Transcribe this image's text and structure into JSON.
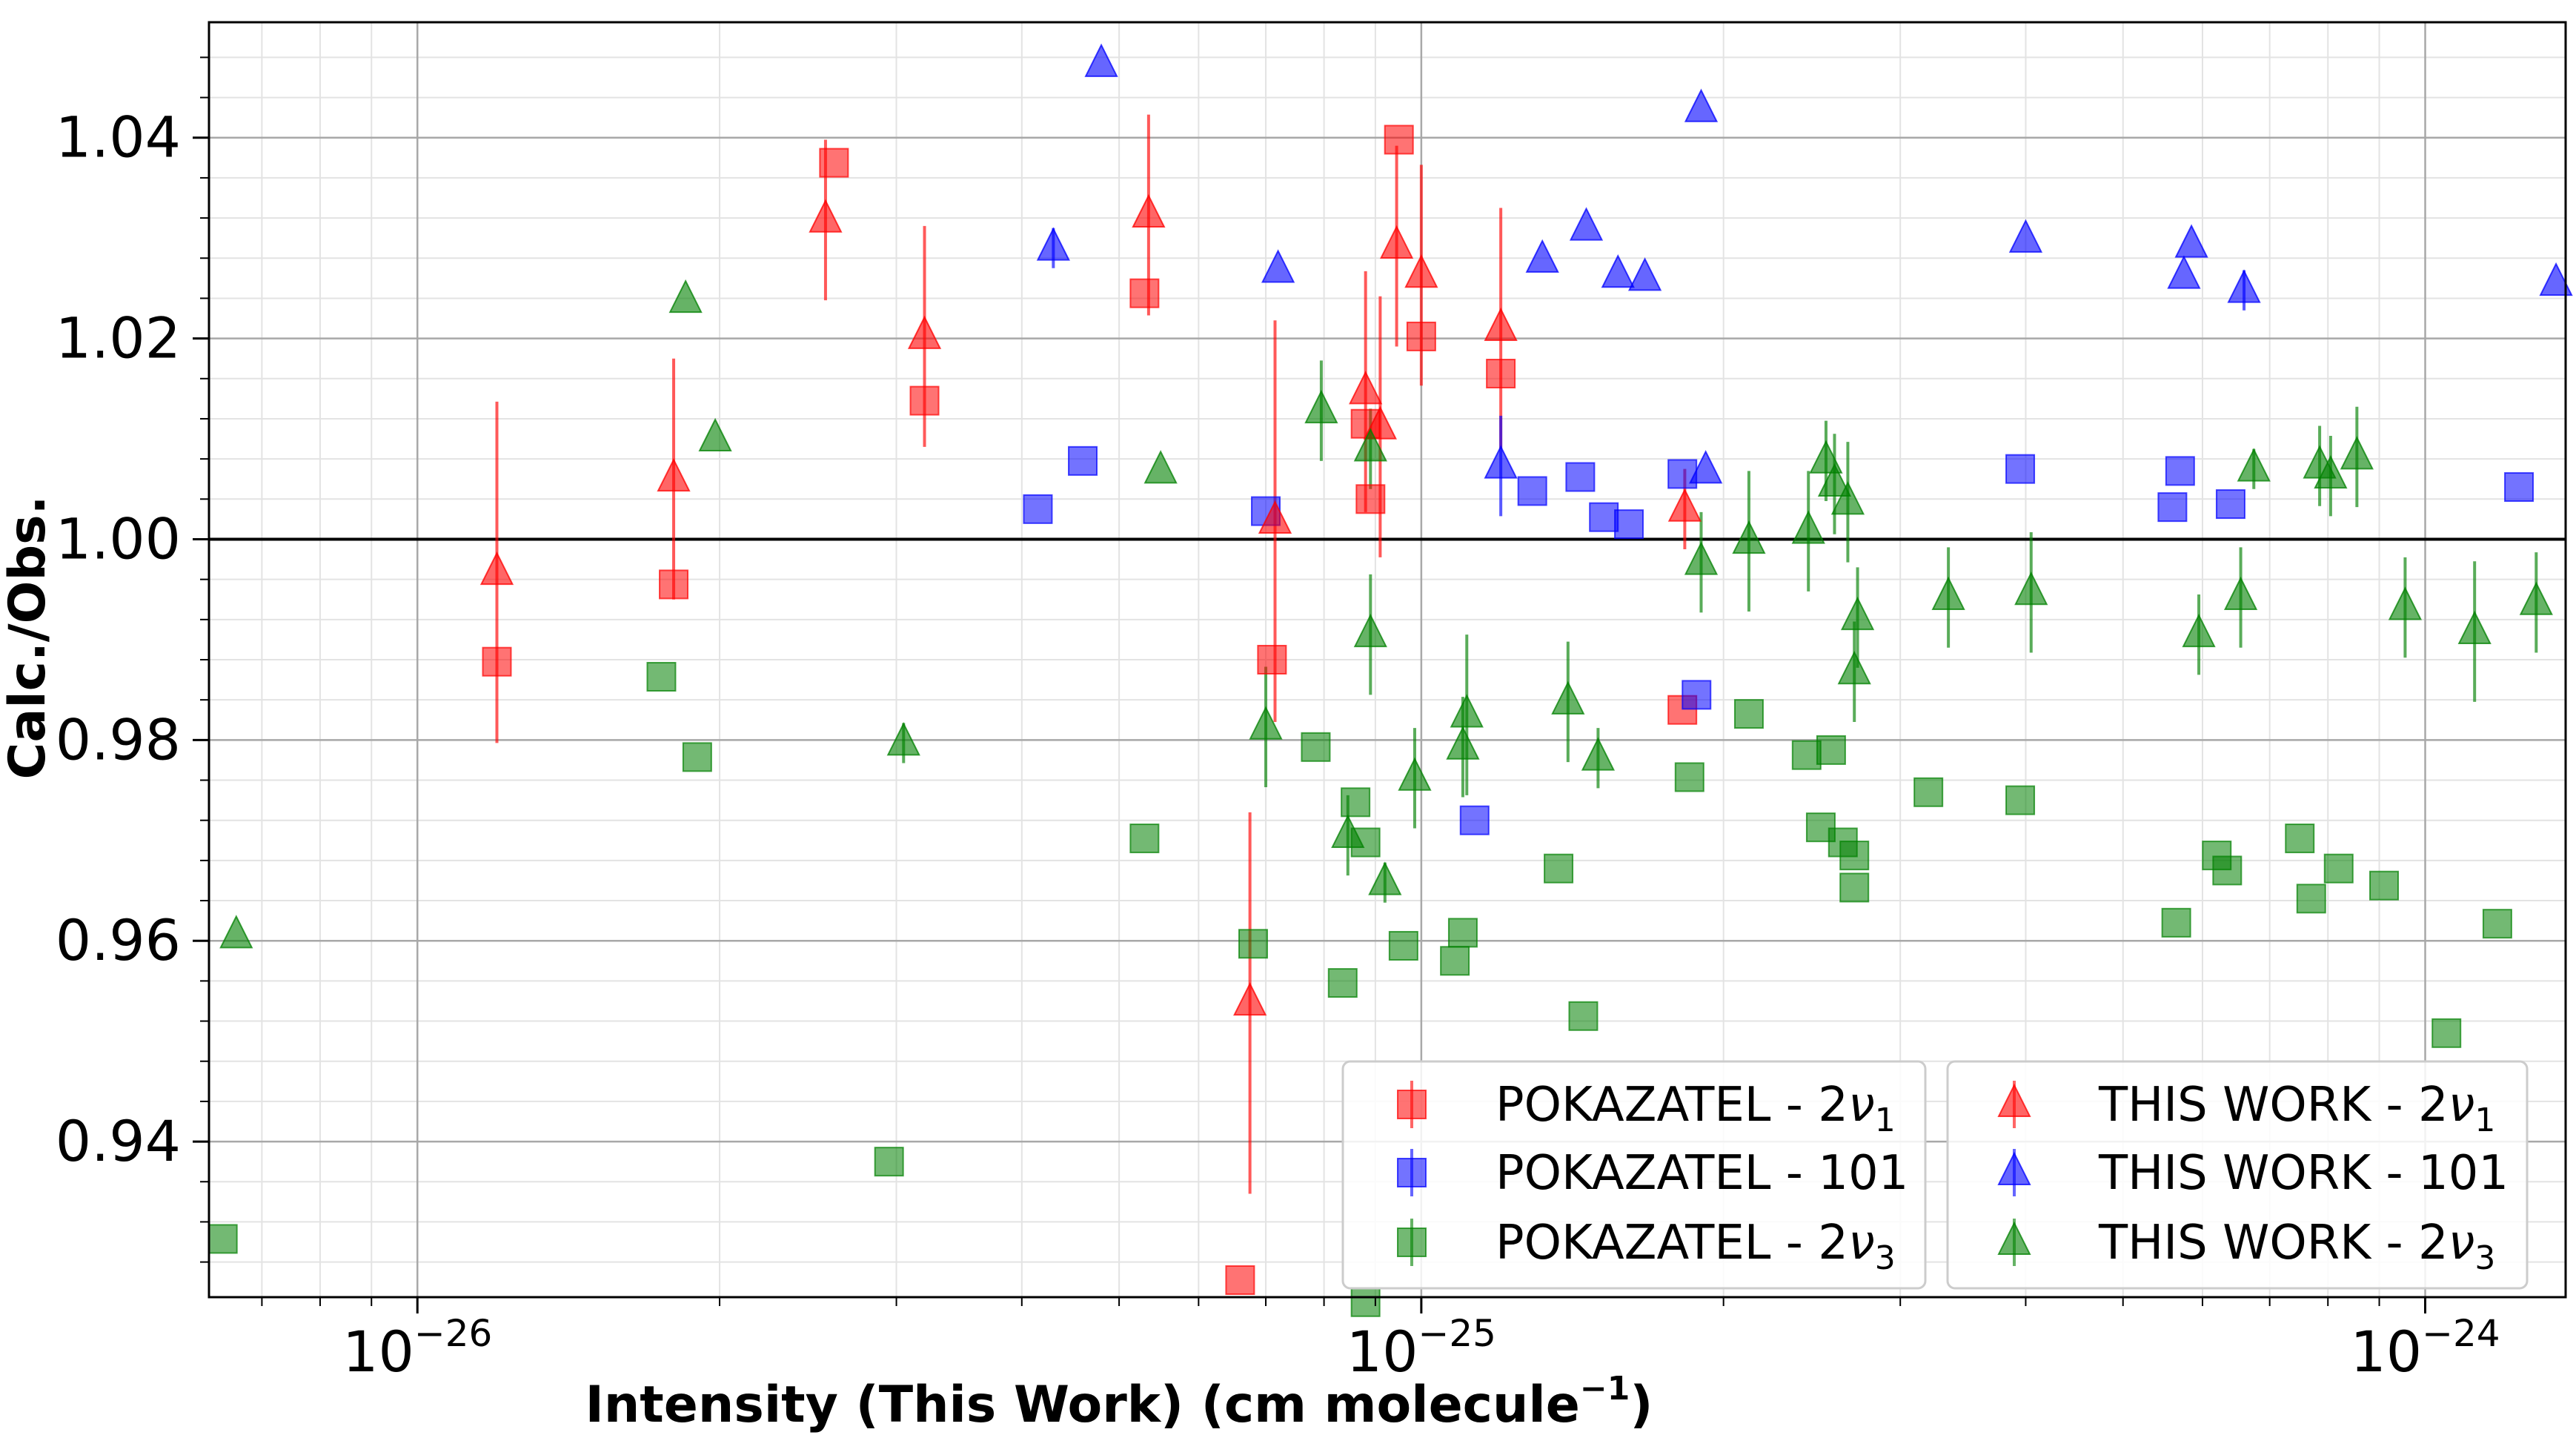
{
  "chart_data": {
    "type": "scatter",
    "title": "",
    "xlabel": "Intensity (This Work) (cm molecule",
    "xlabel_sup": "−1",
    "xlabel_close": ")",
    "ylabel": "Calc./Obs.",
    "xscale": "log",
    "xlim": [
      6.2e-27,
      1.38e-24
    ],
    "ylim": [
      0.9245,
      1.0515
    ],
    "x_ticks": [
      {
        "value": 1e-26,
        "base": "10",
        "exp": "−26"
      },
      {
        "value": 1e-25,
        "base": "10",
        "exp": "−25"
      },
      {
        "value": 1e-24,
        "base": "10",
        "exp": "−24"
      }
    ],
    "y_ticks": [
      {
        "value": 0.94,
        "label": "0.94"
      },
      {
        "value": 0.96,
        "label": "0.96"
      },
      {
        "value": 0.98,
        "label": "0.98"
      },
      {
        "value": 1.0,
        "label": "1.00"
      },
      {
        "value": 1.02,
        "label": "1.02"
      },
      {
        "value": 1.04,
        "label": "1.04"
      }
    ],
    "reference_line": 1.0,
    "grid": true,
    "legend_position": "lower-right",
    "series": [
      {
        "name": "POKAZATEL - 2ν1",
        "label_main": "POKAZATEL - 2",
        "label_nu": "ν",
        "label_sub": "1",
        "marker": "square",
        "color": "#ff0000",
        "points": [
          [
            1.2e-26,
            0.9878
          ],
          [
            1.8e-26,
            0.9955
          ],
          [
            2.6e-26,
            1.0375
          ],
          [
            3.2e-26,
            1.0138
          ],
          [
            5.3e-26,
            1.0245
          ],
          [
            6.6e-26,
            0.9262
          ],
          [
            7.1e-26,
            0.988
          ],
          [
            8.8e-26,
            1.0115
          ],
          [
            8.9e-26,
            1.004
          ],
          [
            9.5e-26,
            1.0398
          ],
          [
            1e-25,
            1.0202
          ],
          [
            1.2e-25,
            1.0165
          ],
          [
            1.82e-25,
            0.983
          ]
        ]
      },
      {
        "name": "POKAZATEL - 101",
        "label_main": "POKAZATEL - 101",
        "label_nu": "",
        "label_sub": "",
        "marker": "square",
        "color": "#0000ff",
        "points": [
          [
            4.15e-26,
            1.003
          ],
          [
            4.6e-26,
            1.0078
          ],
          [
            7e-26,
            1.0028
          ],
          [
            1.13e-25,
            0.972
          ],
          [
            1.29e-25,
            1.0048
          ],
          [
            1.44e-25,
            1.0062
          ],
          [
            1.52e-25,
            1.0022
          ],
          [
            1.61e-25,
            1.0015
          ],
          [
            1.82e-25,
            1.0065
          ],
          [
            1.88e-25,
            0.9845
          ],
          [
            3.95e-25,
            1.007
          ],
          [
            5.6e-25,
            1.0032
          ],
          [
            5.7e-25,
            1.0068
          ],
          [
            6.4e-25,
            1.0035
          ],
          [
            1.24e-24,
            1.0052
          ]
        ]
      },
      {
        "name": "POKAZATEL - 2ν3",
        "label_main": "POKAZATEL - 2",
        "label_nu": "ν",
        "label_sub": "3",
        "marker": "square",
        "color": "#008000",
        "points": [
          [
            6.4e-27,
            0.9303
          ],
          [
            1.75e-26,
            0.9863
          ],
          [
            1.9e-26,
            0.9783
          ],
          [
            2.95e-26,
            0.938
          ],
          [
            5.3e-26,
            0.9702
          ],
          [
            6.8e-26,
            0.9597
          ],
          [
            7.85e-26,
            0.9793
          ],
          [
            8.35e-26,
            0.9558
          ],
          [
            8.6e-26,
            0.9738
          ],
          [
            8.8e-26,
            0.9698
          ],
          [
            8.8e-26,
            0.924
          ],
          [
            9.6e-26,
            0.9595
          ],
          [
            1.08e-25,
            0.958
          ],
          [
            1.1e-25,
            0.9608
          ],
          [
            1.37e-25,
            0.9672
          ],
          [
            1.45e-25,
            0.9525
          ],
          [
            1.85e-25,
            0.9763
          ],
          [
            2.12e-25,
            0.9826
          ],
          [
            2.42e-25,
            0.9785
          ],
          [
            2.5e-25,
            0.9713
          ],
          [
            2.56e-25,
            0.979
          ],
          [
            2.63e-25,
            0.9698
          ],
          [
            2.7e-25,
            0.9685
          ],
          [
            2.7e-25,
            0.9653
          ],
          [
            3.2e-25,
            0.9748
          ],
          [
            3.95e-25,
            0.974
          ],
          [
            5.65e-25,
            0.9618
          ],
          [
            6.2e-25,
            0.9685
          ],
          [
            6.35e-25,
            0.967
          ],
          [
            7.5e-25,
            0.9702
          ],
          [
            7.7e-25,
            0.9642
          ],
          [
            8.2e-25,
            0.9672
          ],
          [
            9.1e-25,
            0.9655
          ],
          [
            1.05e-24,
            0.9508
          ],
          [
            1.18e-24,
            0.9617
          ]
        ]
      },
      {
        "name": "THIS WORK - 2ν1",
        "label_main": "THIS WORK - 2",
        "label_nu": "ν",
        "label_sub": "1",
        "marker": "triangle",
        "color": "#ff0000",
        "points": [
          [
            1.2e-26,
            0.9967,
            0.017
          ],
          [
            1.8e-26,
            1.006,
            0.012
          ],
          [
            2.55e-26,
            1.0318,
            0.008
          ],
          [
            3.2e-26,
            1.0202,
            0.011
          ],
          [
            5.35e-26,
            1.0323,
            0.01
          ],
          [
            6.75e-26,
            0.9538,
            0.019
          ],
          [
            7.15e-26,
            1.0018,
            0.02
          ],
          [
            8.8e-26,
            1.0147,
            0.012
          ],
          [
            9.1e-26,
            1.0112,
            0.013
          ],
          [
            9.45e-26,
            1.0292,
            0.01
          ],
          [
            1e-25,
            1.0263,
            0.011
          ],
          [
            1.2e-25,
            1.021,
            0.012
          ],
          [
            1.83e-25,
            1.003,
            0.004
          ]
        ]
      },
      {
        "name": "THIS WORK - 101",
        "label_main": "THIS WORK - 101",
        "label_nu": "",
        "label_sub": "",
        "marker": "triangle",
        "color": "#0000ff",
        "points": [
          [
            4.3e-26,
            1.029,
            0.002
          ],
          [
            4.8e-26,
            1.0473,
            0
          ],
          [
            7.2e-26,
            1.0268,
            0
          ],
          [
            1.2e-25,
            1.0073,
            0.005
          ],
          [
            1.32e-25,
            1.0278,
            0
          ],
          [
            1.46e-25,
            1.031,
            0
          ],
          [
            1.57e-25,
            1.0263,
            0
          ],
          [
            1.67e-25,
            1.026,
            0
          ],
          [
            1.9e-25,
            1.0428,
            0
          ],
          [
            1.92e-25,
            1.0068,
            0
          ],
          [
            4e-25,
            1.0298,
            0
          ],
          [
            5.75e-25,
            1.0262,
            0
          ],
          [
            5.85e-25,
            1.0293,
            0
          ],
          [
            6.6e-25,
            1.0248,
            0.002
          ],
          [
            1.35e-24,
            1.0255,
            0
          ]
        ]
      },
      {
        "name": "THIS WORK - 2ν3",
        "label_main": "THIS WORK - 2",
        "label_nu": "ν",
        "label_sub": "3",
        "marker": "triangle",
        "color": "#008000",
        "points": [
          [
            6.6e-27,
            0.9605,
            0
          ],
          [
            1.85e-26,
            1.0238,
            0
          ],
          [
            1.98e-26,
            1.01,
            0
          ],
          [
            3.05e-26,
            0.9797,
            0.002
          ],
          [
            5.5e-26,
            1.0068,
            0
          ],
          [
            7e-26,
            0.9813,
            0.006
          ],
          [
            7.95e-26,
            1.0128,
            0.005
          ],
          [
            8.45e-26,
            0.9705,
            0.004
          ],
          [
            8.9e-26,
            1.009,
            0.004
          ],
          [
            8.9e-26,
            0.9905,
            0.006
          ],
          [
            9.2e-26,
            0.9658,
            0.002
          ],
          [
            9.85e-26,
            0.9762,
            0.005
          ],
          [
            1.1e-25,
            0.9793,
            0.005
          ],
          [
            1.11e-25,
            0.9825,
            0.008
          ],
          [
            1.4e-25,
            0.9838,
            0.006
          ],
          [
            1.5e-25,
            0.9782,
            0.003
          ],
          [
            1.9e-25,
            0.9977,
            0.005
          ],
          [
            2.12e-25,
            0.9998,
            0.007
          ],
          [
            2.43e-25,
            1.0008,
            0.006
          ],
          [
            2.53e-25,
            1.0078,
            0.004
          ],
          [
            2.58e-25,
            1.0055,
            0.005
          ],
          [
            2.66e-25,
            1.0037,
            0.006
          ],
          [
            2.7e-25,
            0.9868,
            0.005
          ],
          [
            2.72e-25,
            0.9922,
            0.005
          ],
          [
            3.35e-25,
            0.9942,
            0.005
          ],
          [
            4.05e-25,
            0.9947,
            0.006
          ],
          [
            5.95e-25,
            0.9905,
            0.004
          ],
          [
            6.55e-25,
            0.9942,
            0.005
          ],
          [
            6.75e-25,
            1.007,
            0.002
          ],
          [
            7.85e-25,
            1.0073,
            0.004
          ],
          [
            8.05e-25,
            1.0063,
            0.004
          ],
          [
            8.55e-25,
            1.0082,
            0.005
          ],
          [
            9.55e-25,
            0.9932,
            0.005
          ],
          [
            1.12e-24,
            0.9908,
            0.007
          ],
          [
            1.29e-24,
            0.9937,
            0.005
          ]
        ]
      }
    ]
  }
}
